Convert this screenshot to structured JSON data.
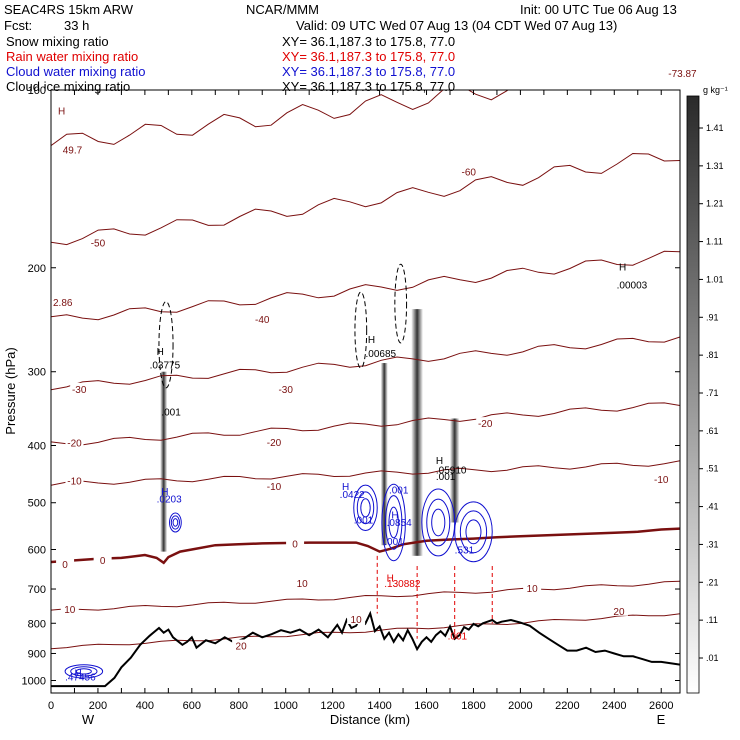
{
  "header": {
    "model": "SEAC4RS 15km ARW",
    "org": "NCAR/MMM",
    "init": "Init: 00 UTC Tue 06 Aug 13",
    "fcst_label": "Fcst:",
    "fcst_value": "33 h",
    "valid": "Valid: 09 UTC Wed 07 Aug 13 (04 CDT Wed 07 Aug 13)"
  },
  "fields": [
    {
      "label": "Snow mixing ratio",
      "color": "#000000",
      "xy": "XY=  36.1,187.3 to 175.8, 77.0"
    },
    {
      "label": "Rain water mixing ratio",
      "color": "#e00000",
      "xy": "XY=  36.1,187.3 to 175.8, 77.0"
    },
    {
      "label": "Cloud water mixing ratio",
      "color": "#1010d0",
      "xy": "XY=  36.1,187.3 to 175.8, 77.0"
    },
    {
      "label": "Cloud ice mixing ratio",
      "color": "#000000",
      "xy": "XY=  36.1,187.3 to 175.8, 77.0"
    }
  ],
  "chart_data": {
    "type": "line",
    "xlabel": "Distance (km)",
    "ylabel": "Pressure (hPa)",
    "xlim": [
      0,
      2680
    ],
    "ylim": [
      1050,
      100
    ],
    "x_ticks": [
      0,
      100,
      200,
      300,
      400,
      500,
      600,
      700,
      800,
      900,
      1000,
      1100,
      1200,
      1300,
      1400,
      1500,
      1600,
      1700,
      1800,
      1900,
      2000,
      2100,
      2200,
      2300,
      2400,
      2500,
      2600
    ],
    "x_tick_labels": [
      "0",
      "200",
      "400",
      "600",
      "800",
      "1000",
      "1200",
      "1400",
      "1600",
      "1800",
      "2000",
      "2200",
      "2400",
      "2600"
    ],
    "y_ticks": [
      100,
      200,
      300,
      400,
      500,
      600,
      700,
      800,
      900,
      1000
    ],
    "y_tick_labels": [
      "100",
      "200",
      "300",
      "400",
      "500",
      "600",
      "700",
      "800",
      "900",
      "1000"
    ],
    "x_end_labels": {
      "left": "W",
      "right": "E"
    },
    "terrain": {
      "x": [
        0,
        120,
        230,
        270,
        300,
        340,
        380,
        420,
        460,
        480,
        500,
        520,
        560,
        580,
        600,
        620,
        660,
        700,
        740,
        780,
        820,
        860,
        900,
        940,
        980,
        1020,
        1060,
        1100,
        1140,
        1180,
        1220,
        1240,
        1260,
        1280,
        1300,
        1320,
        1340,
        1360,
        1380,
        1400,
        1420,
        1440,
        1460,
        1480,
        1500,
        1520,
        1540,
        1560,
        1580,
        1600,
        1620,
        1640,
        1660,
        1680,
        1700,
        1720,
        1740,
        1760,
        1780,
        1800,
        1820,
        1840,
        1860,
        1880,
        1900,
        1920,
        1960,
        2000,
        2040,
        2080,
        2120,
        2160,
        2200,
        2240,
        2280,
        2320,
        2360,
        2400,
        2440,
        2480,
        2520,
        2560,
        2600,
        2640,
        2680
      ],
      "p": [
        1022,
        1022,
        1022,
        990,
        950,
        915,
        870,
        840,
        815,
        830,
        820,
        845,
        870,
        860,
        845,
        880,
        855,
        865,
        845,
        862,
        850,
        830,
        845,
        835,
        822,
        830,
        820,
        838,
        820,
        845,
        805,
        830,
        790,
        815,
        808,
        780,
        800,
        770,
        825,
        810,
        850,
        830,
        860,
        835,
        855,
        822,
        850,
        885,
        860,
        845,
        860,
        838,
        825,
        840,
        810,
        850,
        838,
        812,
        820,
        802,
        810,
        800,
        795,
        790,
        800,
        795,
        790,
        798,
        808,
        830,
        850,
        870,
        890,
        890,
        880,
        895,
        890,
        900,
        910,
        910,
        920,
        930,
        930,
        935,
        940
      ]
    },
    "freezing_level": {
      "x": [
        0,
        100,
        200,
        300,
        400,
        450,
        480,
        500,
        550,
        600,
        700,
        800,
        900,
        1000,
        1100,
        1200,
        1300,
        1350,
        1400,
        1450,
        1500,
        1600,
        1700,
        1800,
        1900,
        2000,
        2100,
        2200,
        2300,
        2400,
        2500,
        2600,
        2680
      ],
      "p": [
        630,
        626,
        622,
        620,
        613,
        620,
        632,
        618,
        605,
        600,
        590,
        588,
        586,
        585,
        584,
        584,
        584,
        592,
        605,
        598,
        588,
        580,
        577,
        575,
        572,
        570,
        568,
        566,
        564,
        562,
        560,
        555,
        553
      ]
    },
    "isotherms": [
      {
        "t": -60,
        "p_left": 123,
        "p_right": 90
      },
      {
        "t": -50,
        "p_left": 180,
        "p_right": 128
      },
      {
        "t": -40,
        "p_left": 245,
        "p_right": 190
      },
      {
        "t": -30,
        "p_left": 318,
        "p_right": 262
      },
      {
        "t": -20,
        "p_left": 398,
        "p_right": 340
      },
      {
        "t": -10,
        "p_left": 465,
        "p_right": 428
      },
      {
        "t": 10,
        "p_left": 762,
        "p_right": 682
      },
      {
        "t": 20,
        "p_left": 880,
        "p_right": 770
      }
    ],
    "isotherm_labels": [
      {
        "text": "-60",
        "x": 1780,
        "p": 138
      },
      {
        "text": "-50",
        "x": 200,
        "p": 182
      },
      {
        "text": "-40",
        "x": 900,
        "p": 245
      },
      {
        "text": "-30",
        "x": 120,
        "p": 322
      },
      {
        "text": "-30",
        "x": 1000,
        "p": 322
      },
      {
        "text": "-20",
        "x": 100,
        "p": 397
      },
      {
        "text": "-20",
        "x": 950,
        "p": 396
      },
      {
        "text": "-20",
        "x": 1850,
        "p": 368
      },
      {
        "text": "-10",
        "x": 100,
        "p": 460
      },
      {
        "text": "-10",
        "x": 950,
        "p": 470
      },
      {
        "text": "-10",
        "x": 2600,
        "p": 458
      },
      {
        "text": "0",
        "x": 60,
        "p": 638
      },
      {
        "text": "0",
        "x": 220,
        "p": 628
      },
      {
        "text": "0",
        "x": 1040,
        "p": 588
      },
      {
        "text": "10",
        "x": 1070,
        "p": 686
      },
      {
        "text": "10",
        "x": 2050,
        "p": 700
      },
      {
        "text": "10",
        "x": 80,
        "p": 760
      },
      {
        "text": "10",
        "x": 1300,
        "p": 790
      },
      {
        "text": "20",
        "x": 2420,
        "p": 765
      },
      {
        "text": "20",
        "x": 810,
        "p": 876
      }
    ],
    "snow_columns": [
      {
        "x": 480,
        "p_top": 300,
        "p_bottom": 605,
        "width_km": 30
      },
      {
        "x": 1420,
        "p_top": 290,
        "p_bottom": 590,
        "width_km": 30
      },
      {
        "x": 1560,
        "p_top": 235,
        "p_bottom": 615,
        "width_km": 50
      },
      {
        "x": 1720,
        "p_top": 360,
        "p_bottom": 540,
        "width_km": 40
      }
    ],
    "rain_columns": [
      {
        "x": 1390,
        "p_top": 615,
        "p_bottom": 770
      },
      {
        "x": 1560,
        "p_top": 640,
        "p_bottom": 850
      },
      {
        "x": 1720,
        "p_top": 640,
        "p_bottom": 830
      },
      {
        "x": 1880,
        "p_top": 640,
        "p_bottom": 800
      }
    ],
    "cloud_ice_contours": [
      {
        "cx": 490,
        "p_center": 270,
        "rx_km": 30,
        "rp": 90
      },
      {
        "cx": 1320,
        "p_center": 255,
        "rx_km": 25,
        "rp": 75
      },
      {
        "cx": 1490,
        "p_center": 230,
        "rx_km": 25,
        "rp": 70
      }
    ],
    "cloud_water_contours": [
      {
        "cx": 530,
        "p_center": 540,
        "rx_km": 25,
        "rp": 40
      },
      {
        "cx": 1340,
        "p_center": 510,
        "rx_km": 50,
        "rp": 90
      },
      {
        "cx": 1460,
        "p_center": 540,
        "rx_km": 50,
        "rp": 160
      },
      {
        "cx": 1650,
        "p_center": 540,
        "rx_km": 70,
        "rp": 140
      },
      {
        "cx": 1800,
        "p_center": 560,
        "rx_km": 80,
        "rp": 130
      },
      {
        "cx": 140,
        "p_center": 965,
        "rx_km": 80,
        "rp": 50
      }
    ],
    "extrema_labels": [
      {
        "text": "H",
        "x": 30,
        "p": 110,
        "color": "#7a1010"
      },
      {
        "text": "49.7",
        "x": 50,
        "p": 128,
        "color": "#7a1010"
      },
      {
        "text": "2.86",
        "x": 0,
        "p": 232,
        "color": "#7a1010"
      },
      {
        "text": "-73.87",
        "x": 2630,
        "p": 95,
        "color": "#7a1010"
      },
      {
        "text": "H",
        "x": 450,
        "p": 281,
        "color": "#000000"
      },
      {
        "text": ".03775",
        "x": 420,
        "p": 296,
        "color": "#000000"
      },
      {
        "text": ".001",
        "x": 470,
        "p": 356,
        "color": "#000000"
      },
      {
        "text": "H",
        "x": 1350,
        "p": 268,
        "color": "#000000"
      },
      {
        "text": ".00685",
        "x": 1340,
        "p": 283,
        "color": "#000000"
      },
      {
        "text": "H",
        "x": 2420,
        "p": 202,
        "color": "#000000"
      },
      {
        "text": ".00003",
        "x": 2410,
        "p": 217,
        "color": "#000000"
      },
      {
        "text": "H",
        "x": 1640,
        "p": 430,
        "color": "#000000"
      },
      {
        "text": ".05910",
        "x": 1640,
        "p": 446,
        "color": "#000000"
      },
      {
        "text": ".001",
        "x": 1640,
        "p": 458,
        "color": "#000000"
      },
      {
        "text": "H",
        "x": 470,
        "p": 485,
        "color": "#1010d0"
      },
      {
        "text": ".0203",
        "x": 450,
        "p": 500,
        "color": "#1010d0"
      },
      {
        "text": "H",
        "x": 1240,
        "p": 476,
        "color": "#1010d0"
      },
      {
        "text": ".0422",
        "x": 1230,
        "p": 491,
        "color": "#1010d0"
      },
      {
        "text": ".001",
        "x": 1290,
        "p": 542,
        "color": "#1010d0"
      },
      {
        "text": ".001",
        "x": 1440,
        "p": 482,
        "color": "#1010d0"
      },
      {
        "text": "H",
        "x": 1450,
        "p": 532,
        "color": "#1010d0"
      },
      {
        "text": ".0854",
        "x": 1430,
        "p": 548,
        "color": "#1010d0"
      },
      {
        "text": ".001",
        "x": 1420,
        "p": 590,
        "color": "#1010d0"
      },
      {
        "text": ".531",
        "x": 1720,
        "p": 610,
        "color": "#1010d0"
      },
      {
        "text": "H",
        "x": 1430,
        "p": 680,
        "color": "#e00000"
      },
      {
        "text": ".130882",
        "x": 1420,
        "p": 695,
        "color": "#e00000"
      },
      {
        "text": ".001",
        "x": 1690,
        "p": 852,
        "color": "#e00000"
      },
      {
        "text": "H",
        "x": 100,
        "p": 985,
        "color": "#1010d0"
      },
      {
        "text": ".47456",
        "x": 60,
        "p": 1000,
        "color": "#1010d0"
      }
    ],
    "colorbar": {
      "unit": "g kg⁻¹",
      "levels": [
        "1.41",
        "1.31",
        "1.21",
        "1.11",
        "1.01",
        ".91",
        ".81",
        ".71",
        ".61",
        ".51",
        ".41",
        ".31",
        ".21",
        ".11",
        ".01"
      ]
    }
  }
}
